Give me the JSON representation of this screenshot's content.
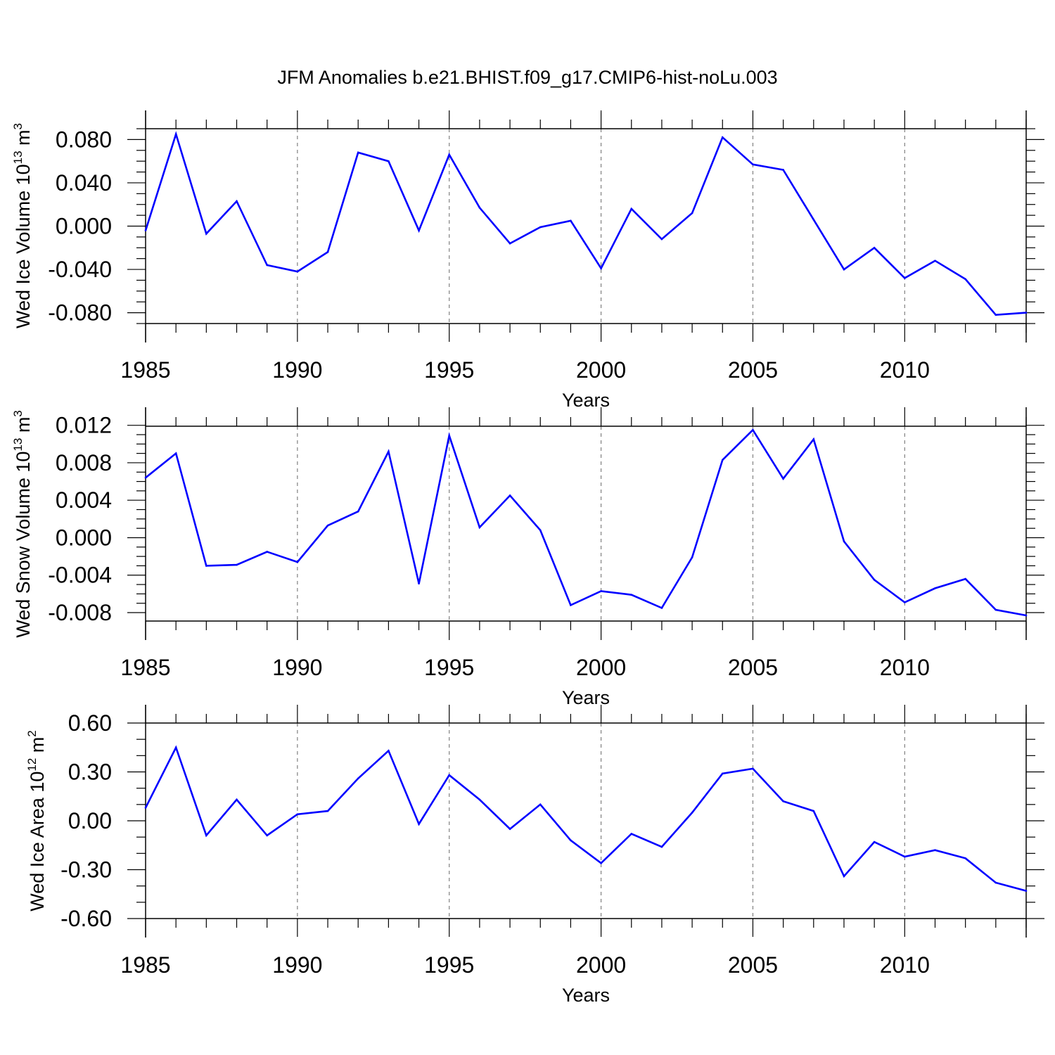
{
  "figure": {
    "title": "JFM Anomalies b.e21.BHIST.f09_g17.CMIP6-hist-noLu.003",
    "line_color": "#0000ff",
    "axis_color": "#000000",
    "grid_color": "#808080"
  },
  "chart_data": [
    {
      "type": "line",
      "ylabel_prefix": "Wed Ice Volume 10",
      "ylabel_exp": "13",
      "ylabel_unit": " m",
      "ylabel_unit_exp": "3",
      "xlabel": "Years",
      "xlim": [
        1985,
        2014
      ],
      "ylim": [
        -0.09,
        0.09
      ],
      "x_ticks": [
        1985,
        1990,
        1995,
        2000,
        2005,
        2010
      ],
      "y_ticks": [
        -0.08,
        -0.04,
        0.0,
        0.04,
        0.08
      ],
      "y_tick_labels": [
        "-0.080",
        "-0.040",
        "0.000",
        "0.040",
        "0.080"
      ],
      "y_minor_step": 0.01,
      "grid": "dashed vertical at major x ticks",
      "x": [
        1985,
        1986,
        1987,
        1988,
        1989,
        1990,
        1991,
        1992,
        1993,
        1994,
        1995,
        1996,
        1997,
        1998,
        1999,
        2000,
        2001,
        2002,
        2003,
        2004,
        2005,
        2006,
        2007,
        2008,
        2009,
        2010,
        2011,
        2012,
        2013,
        2014
      ],
      "values": [
        -0.004,
        0.085,
        -0.007,
        0.023,
        -0.036,
        -0.042,
        -0.024,
        0.068,
        0.06,
        -0.004,
        0.066,
        0.017,
        -0.016,
        -0.001,
        0.005,
        -0.039,
        0.016,
        -0.012,
        0.012,
        0.082,
        0.057,
        0.052,
        0.006,
        -0.04,
        -0.02,
        -0.048,
        -0.032,
        -0.049,
        -0.082,
        -0.08
      ]
    },
    {
      "type": "line",
      "ylabel_prefix": "Wed Snow Volume 10",
      "ylabel_exp": "13",
      "ylabel_unit": " m",
      "ylabel_unit_exp": "3",
      "xlabel": "Years",
      "xlim": [
        1985,
        2014
      ],
      "ylim": [
        -0.0089,
        0.0119
      ],
      "x_ticks": [
        1985,
        1990,
        1995,
        2000,
        2005,
        2010
      ],
      "y_ticks": [
        -0.008,
        -0.004,
        0.0,
        0.004,
        0.008,
        0.012
      ],
      "y_tick_labels": [
        "-0.008",
        "-0.004",
        "0.000",
        "0.004",
        "0.008",
        "0.012"
      ],
      "y_minor_step": 0.001,
      "grid": "dashed vertical at major x ticks",
      "x": [
        1985,
        1986,
        1987,
        1988,
        1989,
        1990,
        1991,
        1992,
        1993,
        1994,
        1995,
        1996,
        1997,
        1998,
        1999,
        2000,
        2001,
        2002,
        2003,
        2004,
        2005,
        2006,
        2007,
        2008,
        2009,
        2010,
        2011,
        2012,
        2013,
        2014
      ],
      "values": [
        0.0064,
        0.009,
        -0.003,
        -0.0029,
        -0.0015,
        -0.0026,
        0.0013,
        0.0028,
        0.0092,
        -0.0049,
        0.0109,
        0.0011,
        0.0045,
        0.0008,
        -0.0072,
        -0.0057,
        -0.0061,
        -0.0075,
        -0.0021,
        0.0083,
        0.0115,
        0.0063,
        0.0105,
        -0.0004,
        -0.0045,
        -0.0069,
        -0.0054,
        -0.0044,
        -0.0077,
        -0.0083
      ]
    },
    {
      "type": "line",
      "ylabel_prefix": "Wed Ice Area 10",
      "ylabel_exp": "12",
      "ylabel_unit": " m",
      "ylabel_unit_exp": "2",
      "xlabel": "Years",
      "xlim": [
        1985,
        2014
      ],
      "ylim": [
        -0.6,
        0.6
      ],
      "x_ticks": [
        1985,
        1990,
        1995,
        2000,
        2005,
        2010
      ],
      "y_ticks": [
        -0.6,
        -0.3,
        0.0,
        0.3,
        0.6
      ],
      "y_tick_labels": [
        "-0.60",
        "-0.30",
        "0.00",
        "0.30",
        "0.60"
      ],
      "y_minor_step": 0.1,
      "grid": "dashed vertical at major x ticks",
      "x": [
        1985,
        1986,
        1987,
        1988,
        1989,
        1990,
        1991,
        1992,
        1993,
        1994,
        1995,
        1996,
        1997,
        1998,
        1999,
        2000,
        2001,
        2002,
        2003,
        2004,
        2005,
        2006,
        2007,
        2008,
        2009,
        2010,
        2011,
        2012,
        2013,
        2014
      ],
      "values": [
        0.08,
        0.45,
        -0.09,
        0.13,
        -0.09,
        0.04,
        0.06,
        0.26,
        0.43,
        -0.02,
        0.28,
        0.13,
        -0.05,
        0.1,
        -0.12,
        -0.26,
        -0.08,
        -0.16,
        0.05,
        0.29,
        0.32,
        0.12,
        0.06,
        -0.34,
        -0.13,
        -0.22,
        -0.18,
        -0.23,
        -0.38,
        -0.43
      ]
    }
  ]
}
